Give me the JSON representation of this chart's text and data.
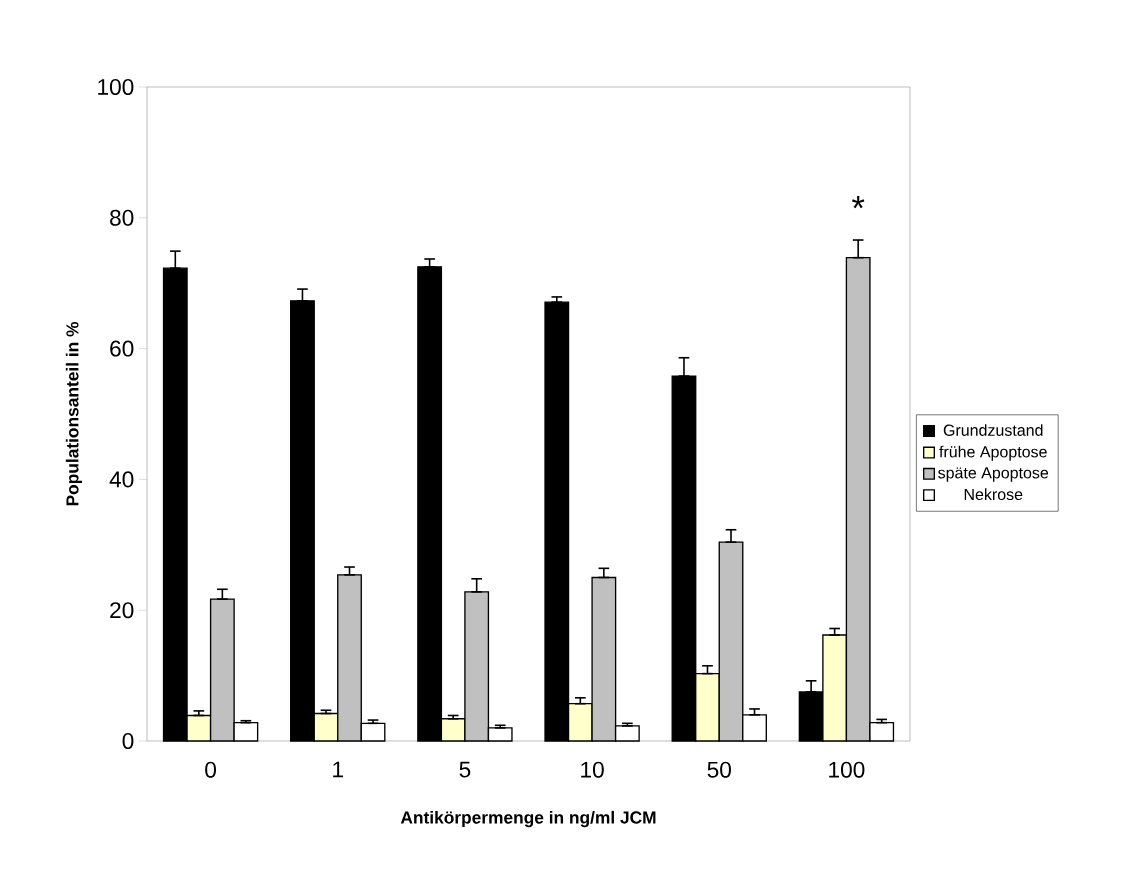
{
  "chart_data": {
    "type": "bar",
    "xlabel": "Antikörpermenge in ng/ml JCM",
    "ylabel": "Populationsanteil in %",
    "categories": [
      "0",
      "1",
      "5",
      "10",
      "50",
      "100"
    ],
    "series": [
      {
        "name": "Grundzustand",
        "color": "#000000",
        "values": [
          72.3,
          67.3,
          72.5,
          67.1,
          55.8,
          7.5
        ],
        "errors": [
          [
            72.3,
            74.9
          ],
          [
            67.3,
            69.1
          ],
          [
            72.5,
            73.7
          ],
          [
            67.1,
            67.9
          ],
          [
            55.8,
            58.6
          ],
          [
            7.5,
            9.2
          ]
        ]
      },
      {
        "name": "frühe Apoptose",
        "color": "#ffffcc",
        "values": [
          3.9,
          4.2,
          3.4,
          5.7,
          10.3,
          16.2
        ],
        "errors": [
          [
            3.9,
            4.6
          ],
          [
            4.2,
            4.7
          ],
          [
            3.4,
            3.9
          ],
          [
            5.7,
            6.6
          ],
          [
            10.3,
            11.5
          ],
          [
            16.2,
            17.2
          ]
        ]
      },
      {
        "name": "späte Apoptose",
        "color": "#c0c0c0",
        "values": [
          21.7,
          25.4,
          22.8,
          25.0,
          30.4,
          73.9
        ],
        "errors": [
          [
            21.7,
            23.2
          ],
          [
            25.4,
            26.6
          ],
          [
            22.8,
            24.8
          ],
          [
            25.0,
            26.4
          ],
          [
            30.4,
            32.3
          ],
          [
            73.9,
            76.6
          ]
        ]
      },
      {
        "name": "Nekrose",
        "color": "#ffffff",
        "values": [
          2.8,
          2.7,
          2.0,
          2.3,
          4.0,
          2.8
        ],
        "errors": [
          [
            2.8,
            3.1
          ],
          [
            2.7,
            3.2
          ],
          [
            2.0,
            2.4
          ],
          [
            2.3,
            2.7
          ],
          [
            4.0,
            4.9
          ],
          [
            2.8,
            3.3
          ]
        ]
      }
    ],
    "ylim": [
      0,
      100
    ],
    "yticks": [
      0,
      20,
      40,
      60,
      80,
      100
    ],
    "legend": "right",
    "annotations": [
      "*"
    ]
  }
}
